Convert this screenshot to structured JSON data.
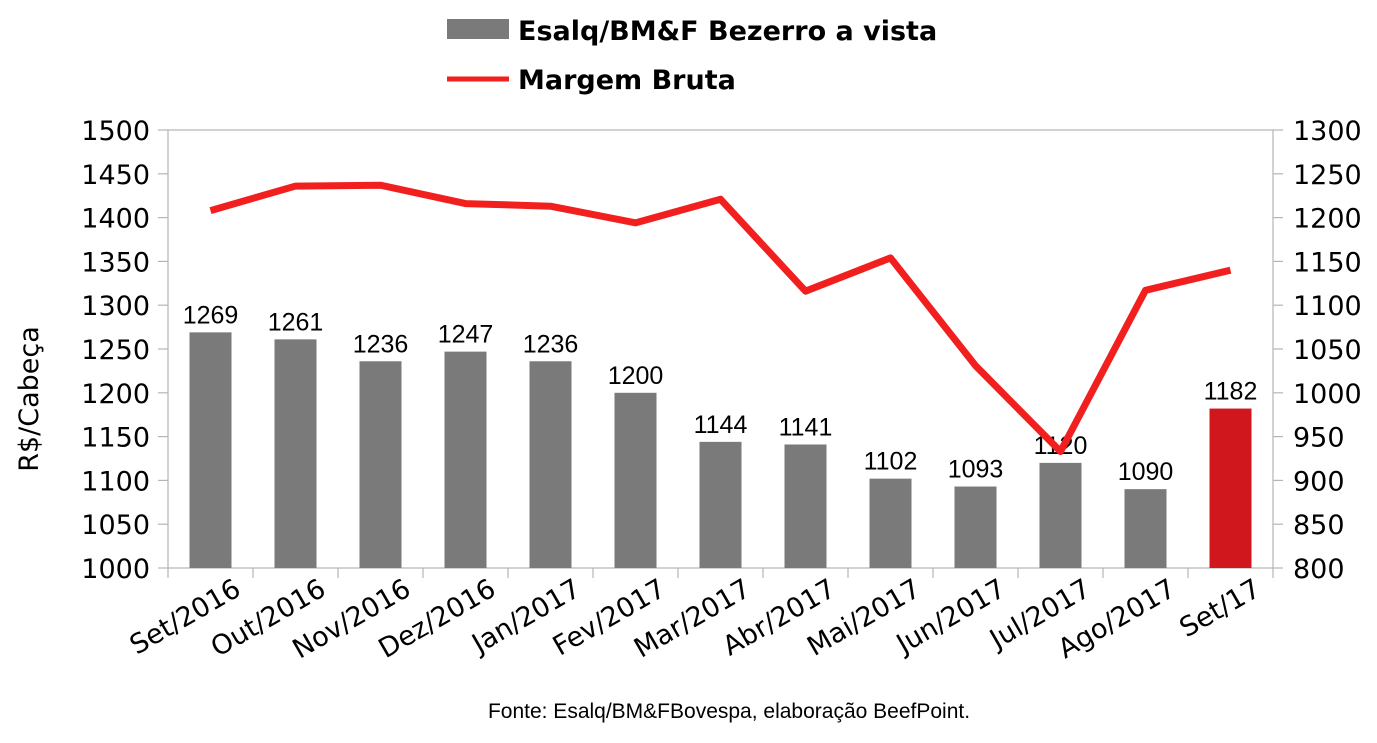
{
  "chart_data": {
    "type": "bar+line",
    "categories": [
      "Set/2016",
      "Out/2016",
      "Nov/2016",
      "Dez/2016",
      "Jan/2017",
      "Fev/2017",
      "Mar/2017",
      "Abr/2017",
      "Mai/2017",
      "Jun/2017",
      "Jul/2017",
      "Ago/2017",
      "Set/17"
    ],
    "series": [
      {
        "name": "Esalq/BM&F Bezerro a vista",
        "type": "bar",
        "axis": "left",
        "values": [
          1269,
          1261,
          1236,
          1247,
          1236,
          1200,
          1144,
          1141,
          1102,
          1093,
          1120,
          1090,
          1182
        ],
        "data_labels": [
          "1269",
          "1261",
          "1236",
          "1247",
          "1236",
          "1200",
          "1144",
          "1141",
          "1102",
          "1093",
          "1120",
          "1090",
          "1182"
        ],
        "color": "#7a7a7a",
        "highlight_color": "#d0171d",
        "highlight_index": 12
      },
      {
        "name": "Margem Bruta",
        "type": "line",
        "axis": "right",
        "values": [
          1208,
          1236,
          1237,
          1216,
          1213,
          1194,
          1221,
          1116,
          1154,
          1031,
          933,
          1117,
          1140
        ],
        "color": "#f21f1f"
      }
    ],
    "ylabel": "R$/Cabeça",
    "ylim": [
      1000,
      1500
    ],
    "yticks": [
      "1000",
      "1050",
      "1100",
      "1150",
      "1200",
      "1250",
      "1300",
      "1350",
      "1400",
      "1450",
      "1500"
    ],
    "y2lim": [
      800,
      1300
    ],
    "y2ticks": [
      "800",
      "850",
      "900",
      "950",
      "1000",
      "1050",
      "1100",
      "1150",
      "1200",
      "1250",
      "1300"
    ],
    "legend_position": "top-center",
    "source": "Fonte: Esalq/BM&FBovespa, elaboração BeefPoint."
  }
}
